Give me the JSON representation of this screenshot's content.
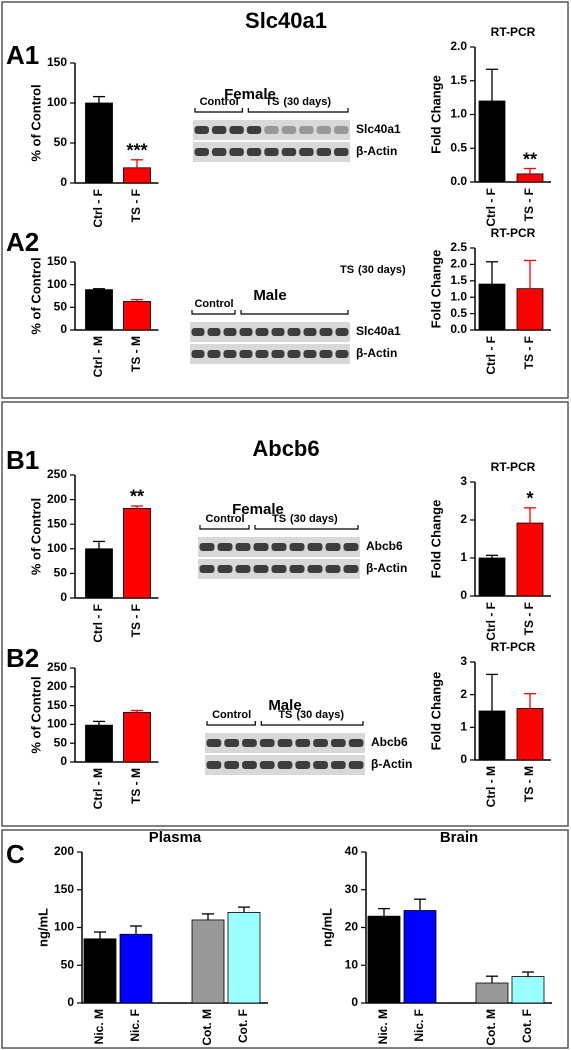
{
  "figure": {
    "sections": [
      "Slc40a1",
      "Abcb6"
    ],
    "panels": [
      "A1",
      "A2",
      "B1",
      "B2",
      "C"
    ],
    "blots": [
      {
        "title": "Female",
        "control": "Control",
        "ts": "TS",
        "duration": "(30 days)",
        "bands": [
          "Slc40a1",
          "β-Actin"
        ]
      },
      {
        "title": "Male",
        "control": "Control",
        "ts": "TS",
        "duration": "(30 days)",
        "bands": [
          "Slc40a1",
          "β-Actin"
        ]
      },
      {
        "title": "Female",
        "control": "Control",
        "ts": "TS",
        "duration": "(30 days)",
        "bands": [
          "Abcb6",
          "β-Actin"
        ]
      },
      {
        "title": "Male",
        "control": "Control",
        "ts": "TS",
        "duration": "(30 days)",
        "bands": [
          "Abcb6",
          "β-Actin"
        ]
      }
    ]
  },
  "chart_data": [
    {
      "type": "bar",
      "ylabel": "% of Control",
      "categories": [
        "Ctrl - F",
        "TS - F"
      ],
      "values": [
        100,
        19
      ],
      "errors": [
        8,
        10
      ],
      "colors": [
        "#000000",
        "#ff0000"
      ],
      "label_colors": [
        "#000000",
        "#ff0000"
      ],
      "ylim": [
        0,
        150
      ],
      "yticks": [
        0,
        50,
        100,
        150
      ],
      "annotations": [
        {
          "text": "***",
          "category": "TS - F"
        }
      ]
    },
    {
      "type": "bar",
      "title": "RT-PCR",
      "ylabel": "Fold Change",
      "ylabel_color": "#0000ff",
      "categories": [
        "Ctrl - F",
        "TS - F"
      ],
      "values": [
        1.2,
        0.12
      ],
      "errors": [
        0.47,
        0.08
      ],
      "colors": [
        "#000000",
        "#ff0000"
      ],
      "label_colors": [
        "#000000",
        "#ff0000"
      ],
      "ylim": [
        0,
        2
      ],
      "yticks": [
        {
          "value": 0,
          "label": "0.0"
        },
        0.5,
        {
          "value": 1,
          "label": "1.0"
        },
        1.5,
        {
          "value": 2,
          "label": "2.0"
        }
      ],
      "annotations": [
        {
          "text": "**",
          "category": "TS - F"
        }
      ]
    },
    {
      "type": "bar",
      "ylabel": "% of Control",
      "categories": [
        "Ctrl - M",
        "TS - M"
      ],
      "values": [
        89,
        63
      ],
      "errors": [
        2,
        4
      ],
      "colors": [
        "#000000",
        "#ff0000"
      ],
      "label_colors": [
        "#000000",
        "#ff0000"
      ],
      "ylim": [
        0,
        150
      ],
      "yticks": [
        0,
        50,
        100,
        150
      ]
    },
    {
      "type": "bar",
      "title": "RT-PCR",
      "ylabel": "Fold Change",
      "ylabel_color": "#0000ff",
      "categories": [
        "Ctrl - F",
        "TS - F"
      ],
      "values": [
        1.4,
        1.26
      ],
      "errors": [
        0.68,
        0.86
      ],
      "colors": [
        "#000000",
        "#ff0000"
      ],
      "label_colors": [
        "#000000",
        "#ff0000"
      ],
      "ylim": [
        0,
        2.5
      ],
      "yticks": [
        {
          "value": 0,
          "label": "0.0"
        },
        0.5,
        {
          "value": 1,
          "label": "1.0"
        },
        1.5,
        {
          "value": 2,
          "label": "2.0"
        },
        2.5
      ]
    },
    {
      "type": "bar",
      "ylabel": "% of Control",
      "categories": [
        "Ctrl - F",
        "TS - F"
      ],
      "values": [
        100,
        182
      ],
      "errors": [
        15,
        5
      ],
      "colors": [
        "#000000",
        "#ff0000"
      ],
      "label_colors": [
        "#000000",
        "#ff0000"
      ],
      "ylim": [
        0,
        250
      ],
      "yticks": [
        0,
        50,
        100,
        150,
        200,
        250
      ],
      "annotations": [
        {
          "text": "**",
          "category": "TS - F"
        }
      ]
    },
    {
      "type": "bar",
      "title": "RT-PCR",
      "ylabel": "Fold Change",
      "ylabel_color": "#0000ff",
      "categories": [
        "Ctrl - F",
        "TS - F"
      ],
      "values": [
        1.0,
        1.92
      ],
      "errors": [
        0.07,
        0.4
      ],
      "colors": [
        "#000000",
        "#ff0000"
      ],
      "label_colors": [
        "#000000",
        "#ff0000"
      ],
      "ylim": [
        0,
        3
      ],
      "yticks": [
        0,
        1,
        2,
        3
      ],
      "annotations": [
        {
          "text": "*",
          "category": "TS - F"
        }
      ]
    },
    {
      "type": "bar",
      "ylabel": "% of Control",
      "categories": [
        "Ctrl - M",
        "TS - M"
      ],
      "values": [
        98,
        132
      ],
      "errors": [
        10,
        5
      ],
      "colors": [
        "#000000",
        "#ff0000"
      ],
      "label_colors": [
        "#000000",
        "#ff0000"
      ],
      "ylim": [
        0,
        250
      ],
      "yticks": [
        0,
        50,
        100,
        150,
        200,
        250
      ]
    },
    {
      "type": "bar",
      "title": "RT-PCR",
      "ylabel": "Fold Change",
      "ylabel_color": "#0000ff",
      "categories": [
        "Ctrl - M",
        "TS - M"
      ],
      "values": [
        1.5,
        1.58
      ],
      "errors": [
        1.12,
        0.45
      ],
      "colors": [
        "#000000",
        "#ff0000"
      ],
      "label_colors": [
        "#000000",
        "#ff0000"
      ],
      "ylim": [
        0,
        3
      ],
      "yticks": [
        0,
        1,
        2,
        3
      ]
    },
    {
      "type": "bar",
      "title": "Plasma",
      "ylabel": "ng/mL",
      "categories": [
        "Nic. M",
        "Nic. F",
        "Cot. M",
        "Cot. F"
      ],
      "values": [
        85,
        91,
        110,
        120
      ],
      "errors": [
        9,
        11,
        8,
        7
      ],
      "colors": [
        "#000000",
        "#0000ff",
        "#999999",
        "#99ffff"
      ],
      "label_colors": [
        "#000000",
        "#0000ff",
        "#000000",
        "#0000ff"
      ],
      "ylim": [
        0,
        200
      ],
      "yticks": [
        0,
        50,
        100,
        150,
        200
      ]
    },
    {
      "type": "bar",
      "title": "Brain",
      "ylabel": "ng/mL",
      "categories": [
        "Nic. M",
        "Nic. F",
        "Cot. M",
        "Cot. F"
      ],
      "values": [
        23,
        24.5,
        5.3,
        7
      ],
      "errors": [
        2,
        3,
        1.8,
        1.2
      ],
      "colors": [
        "#000000",
        "#0000ff",
        "#999999",
        "#99ffff"
      ],
      "label_colors": [
        "#000000",
        "#0000ff",
        "#000000",
        "#0000ff"
      ],
      "ylim": [
        0,
        40
      ],
      "yticks": [
        0,
        10,
        20,
        30,
        40
      ]
    }
  ]
}
